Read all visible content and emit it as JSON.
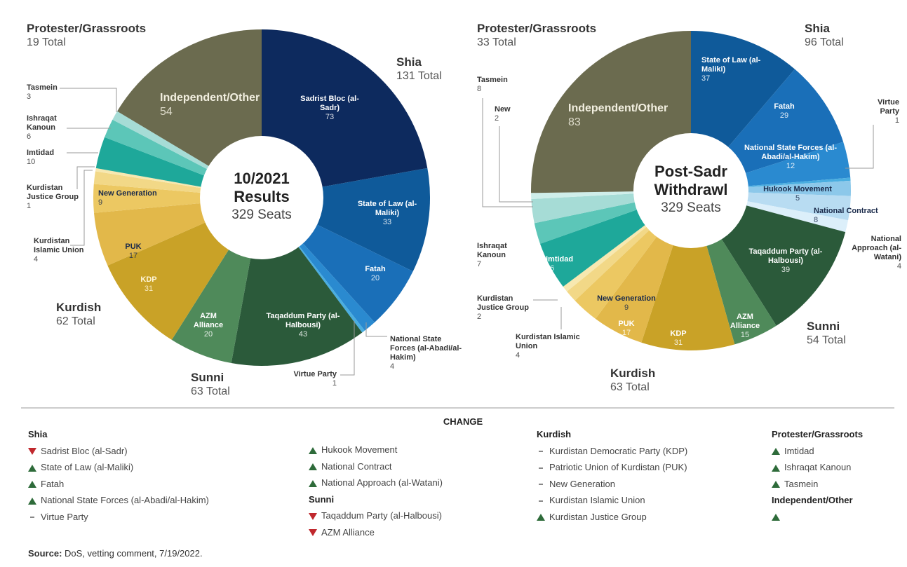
{
  "chart_data": [
    {
      "type": "pie",
      "center_title": "10/2021 Results",
      "center_subtitle": "329 Seats",
      "labels": [
        "Sadrist Bloc (al-Sadr)",
        "State of Law (al-Maliki)",
        "Fatah",
        "National State Forces (al-Abadi/al-Hakim)",
        "Virtue Party",
        "Taqaddum Party (al-Halbousi)",
        "AZM Alliance",
        "KDP",
        "PUK",
        "New Generation",
        "Kurdistan Islamic Union",
        "Kurdistan Justice Group",
        "Imtidad",
        "Ishraqat Kanoun",
        "Tasmein",
        "Independent/Other"
      ],
      "values": [
        73,
        33,
        20,
        4,
        1,
        43,
        20,
        31,
        17,
        9,
        4,
        1,
        10,
        6,
        3,
        54
      ],
      "colors": [
        "#0d2a5e",
        "#0f5a9a",
        "#1a6fb8",
        "#2a8ad0",
        "#4aaee0",
        "#2b5a3a",
        "#4f8a5a",
        "#c9a227",
        "#e2b84a",
        "#ecc862",
        "#f2d887",
        "#f7e8b0",
        "#1ea89a",
        "#5cc6b8",
        "#a6dcd6",
        "#6b6b4f"
      ],
      "groups": [
        {
          "name": "Shia",
          "total": "131 Total"
        },
        {
          "name": "Sunni",
          "total": "63 Total"
        },
        {
          "name": "Kurdish",
          "total": "62 Total"
        },
        {
          "name": "Protester/Grassroots",
          "total": "19 Total"
        }
      ]
    },
    {
      "type": "pie",
      "center_title": "Post-Sadr Withdrawl",
      "center_subtitle": "329 Seats",
      "labels": [
        "State of Law (al-Maliki)",
        "Fatah",
        "National State Forces (al-Abadi/al-Hakim)",
        "Virtue Party",
        "Hukook Movement",
        "National Contract",
        "National Approach (al-Watani)",
        "Taqaddum Party (al-Halbousi)",
        "AZM Alliance",
        "KDP",
        "PUK",
        "New Generation",
        "Kurdistan Islamic Union",
        "Kurdistan Justice Group",
        "Imtidad",
        "Ishraqat Kanoun",
        "Tasmein",
        "New",
        "Independent/Other"
      ],
      "values": [
        37,
        29,
        12,
        1,
        5,
        8,
        4,
        39,
        15,
        31,
        17,
        9,
        4,
        2,
        16,
        7,
        8,
        2,
        83
      ],
      "colors": [
        "#0f5a9a",
        "#1a6fb8",
        "#2a8ad0",
        "#4aaee0",
        "#8cc8ea",
        "#b8dcf2",
        "#dceffa",
        "#2b5a3a",
        "#4f8a5a",
        "#c9a227",
        "#e2b84a",
        "#ecc862",
        "#f2d887",
        "#f7e8b0",
        "#1ea89a",
        "#5cc6b8",
        "#a6dcd6",
        "#cfeeea",
        "#6b6b4f"
      ],
      "groups": [
        {
          "name": "Shia",
          "total": "96 Total"
        },
        {
          "name": "Sunni",
          "total": "54 Total"
        },
        {
          "name": "Kurdish",
          "total": "63 Total"
        },
        {
          "name": "Protester/Grassroots",
          "total": "33 Total"
        }
      ]
    }
  ],
  "change": {
    "title": "CHANGE",
    "groups": [
      {
        "name": "Shia",
        "items": [
          {
            "label": "Sadrist Bloc (al-Sadr)",
            "direction": "down"
          },
          {
            "label": "State of Law (al-Maliki)",
            "direction": "up"
          },
          {
            "label": "Fatah",
            "direction": "up"
          },
          {
            "label": "National State Forces (al-Abadi/al-Hakim)",
            "direction": "up"
          },
          {
            "label": "Virtue Party",
            "direction": "same"
          },
          {
            "label": "Hukook Movement",
            "direction": "up"
          },
          {
            "label": "National Contract",
            "direction": "up"
          },
          {
            "label": "National Approach (al-Watani)",
            "direction": "up"
          }
        ]
      },
      {
        "name": "Sunni",
        "items": [
          {
            "label": "Taqaddum Party (al-Halbousi)",
            "direction": "down"
          },
          {
            "label": "AZM Alliance",
            "direction": "down"
          }
        ]
      },
      {
        "name": "Kurdish",
        "items": [
          {
            "label": "Kurdistan Democratic Party (KDP)",
            "direction": "same"
          },
          {
            "label": "Patriotic Union of Kurdistan (PUK)",
            "direction": "same"
          },
          {
            "label": "New Generation",
            "direction": "same"
          },
          {
            "label": "Kurdistan Islamic Union",
            "direction": "same"
          },
          {
            "label": "Kurdistan Justice Group",
            "direction": "up"
          }
        ]
      },
      {
        "name": "Protester/Grassroots",
        "items": [
          {
            "label": "Imtidad",
            "direction": "up"
          },
          {
            "label": "Ishraqat Kanoun",
            "direction": "up"
          },
          {
            "label": "Tasmein",
            "direction": "up"
          }
        ]
      },
      {
        "name": "Independent/Other",
        "items": [
          {
            "direction": "up"
          }
        ]
      }
    ]
  },
  "source": {
    "label": "Source:",
    "text": "DoS, vetting comment, 7/19/2022."
  }
}
